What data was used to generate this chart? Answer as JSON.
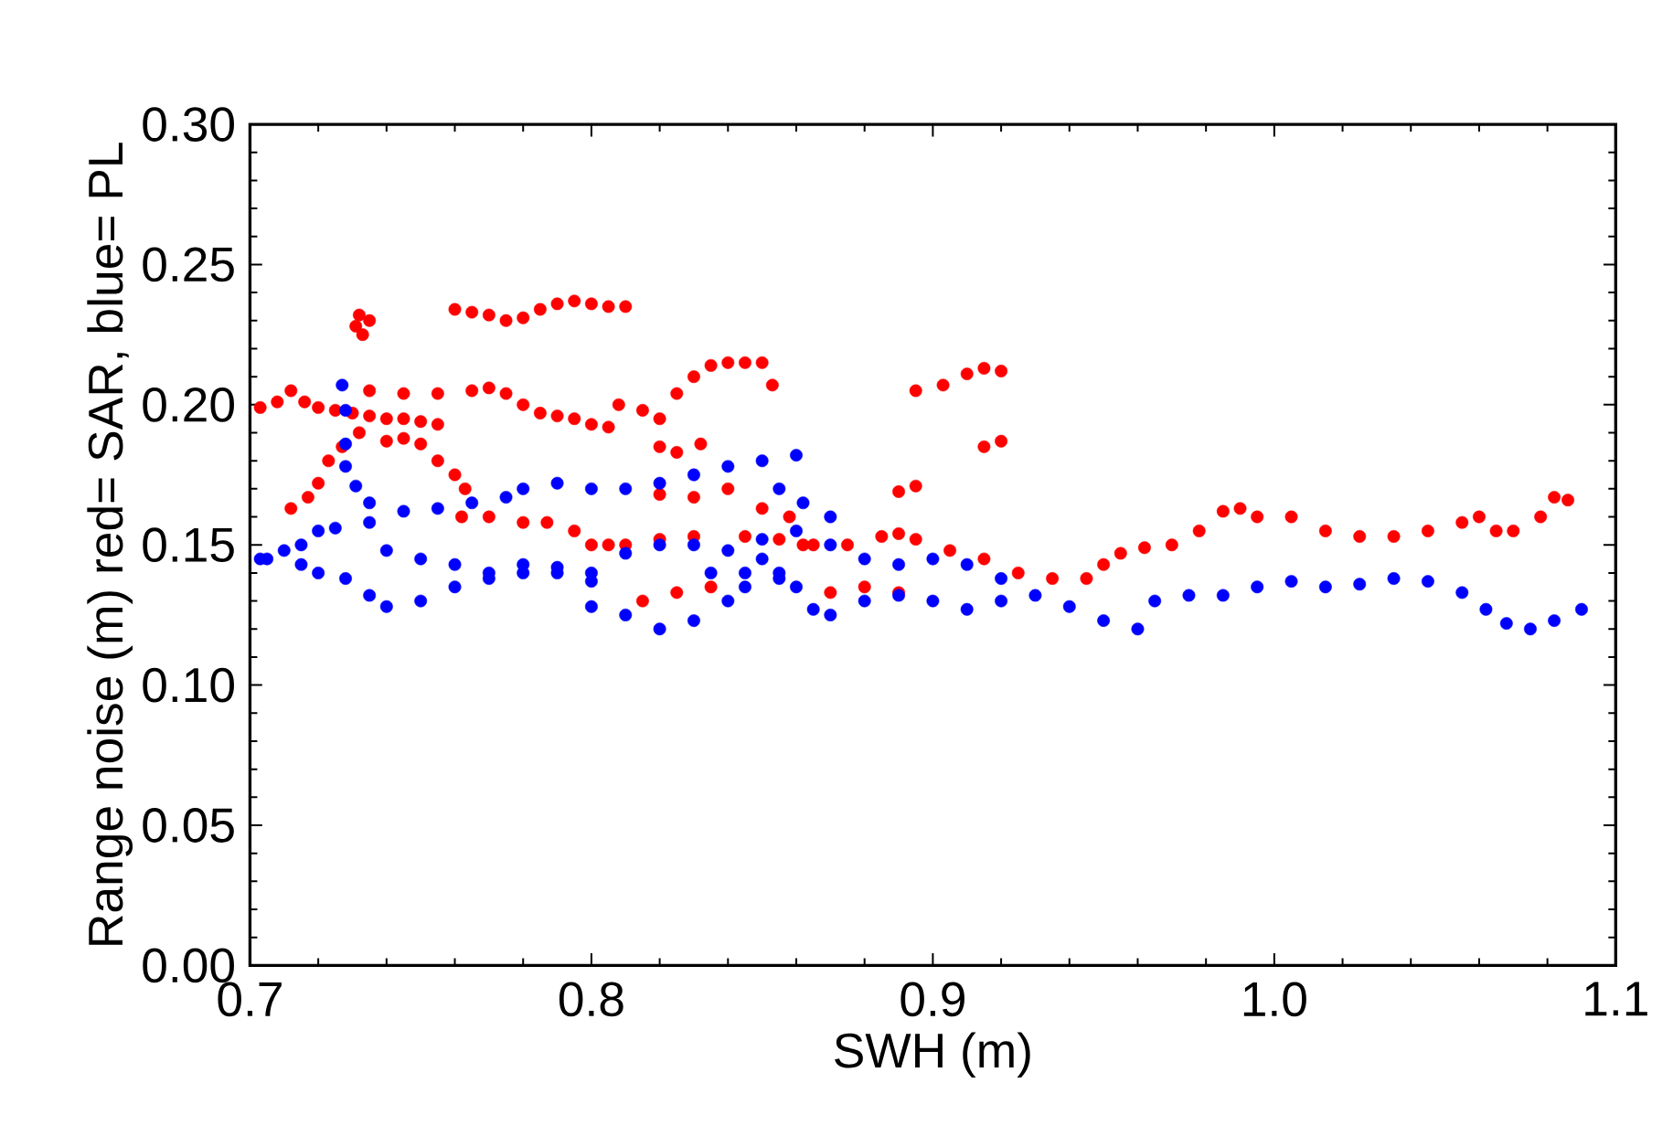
{
  "chart_data": {
    "type": "scatter",
    "xlabel": "SWH (m)",
    "ylabel": "Range noise (m) red= SAR, blue= PL",
    "xlim": [
      0.7,
      1.1
    ],
    "ylim": [
      0,
      0.3
    ],
    "xticks": [
      0.7,
      0.8,
      0.9,
      {
        "value": 1.0,
        "label": "1.0"
      },
      1.1
    ],
    "yticks": [
      {
        "value": 0,
        "label": "0.00"
      },
      {
        "value": 0.05,
        "label": "0.05"
      },
      {
        "value": 0.1,
        "label": "0.10"
      },
      {
        "value": 0.15,
        "label": "0.15"
      },
      {
        "value": 0.2,
        "label": "0.20"
      },
      {
        "value": 0.25,
        "label": "0.25"
      },
      {
        "value": 0.3,
        "label": "0.30"
      }
    ],
    "series": [
      {
        "color": "#ff0000",
        "x": [
          0.731,
          0.733,
          0.735,
          0.732,
          0.76,
          0.765,
          0.77,
          0.775,
          0.78,
          0.785,
          0.79,
          0.795,
          0.8,
          0.805,
          0.81,
          0.703,
          0.708,
          0.712,
          0.716,
          0.72,
          0.725,
          0.73,
          0.735,
          0.74,
          0.745,
          0.75,
          0.755,
          0.735,
          0.745,
          0.755,
          0.765,
          0.77,
          0.775,
          0.78,
          0.785,
          0.79,
          0.795,
          0.8,
          0.805,
          0.808,
          0.815,
          0.82,
          0.825,
          0.83,
          0.835,
          0.84,
          0.845,
          0.85,
          0.853,
          0.712,
          0.717,
          0.72,
          0.723,
          0.727,
          0.732,
          0.74,
          0.745,
          0.75,
          0.755,
          0.76,
          0.763,
          0.762,
          0.77,
          0.78,
          0.787,
          0.795,
          0.8,
          0.805,
          0.82,
          0.825,
          0.832,
          0.82,
          0.83,
          0.84,
          0.85,
          0.858,
          0.862,
          0.81,
          0.82,
          0.83,
          0.845,
          0.855,
          0.865,
          0.875,
          0.885,
          0.89,
          0.895,
          0.905,
          0.915,
          0.925,
          0.935,
          0.945,
          0.95,
          0.955,
          0.962,
          0.97,
          0.978,
          0.985,
          0.99,
          0.995,
          1.005,
          1.015,
          1.025,
          1.035,
          1.045,
          1.055,
          1.06,
          1.065,
          1.07,
          1.078,
          1.082,
          1.086,
          0.815,
          0.825,
          0.835,
          0.87,
          0.88,
          0.89,
          0.895,
          0.903,
          0.91,
          0.915,
          0.92,
          0.915,
          0.92,
          0.89,
          0.895
        ],
        "values": [
          0.228,
          0.225,
          0.23,
          0.232,
          0.234,
          0.233,
          0.232,
          0.23,
          0.231,
          0.234,
          0.236,
          0.237,
          0.236,
          0.235,
          0.235,
          0.199,
          0.201,
          0.205,
          0.201,
          0.199,
          0.198,
          0.197,
          0.196,
          0.195,
          0.195,
          0.194,
          0.193,
          0.205,
          0.204,
          0.204,
          0.205,
          0.206,
          0.204,
          0.2,
          0.197,
          0.196,
          0.195,
          0.193,
          0.192,
          0.2,
          0.198,
          0.195,
          0.204,
          0.21,
          0.214,
          0.215,
          0.215,
          0.215,
          0.207,
          0.163,
          0.167,
          0.172,
          0.18,
          0.185,
          0.19,
          0.187,
          0.188,
          0.186,
          0.18,
          0.175,
          0.17,
          0.16,
          0.16,
          0.158,
          0.158,
          0.155,
          0.15,
          0.15,
          0.185,
          0.183,
          0.186,
          0.168,
          0.167,
          0.17,
          0.163,
          0.16,
          0.15,
          0.15,
          0.152,
          0.153,
          0.153,
          0.152,
          0.15,
          0.15,
          0.153,
          0.154,
          0.152,
          0.148,
          0.145,
          0.14,
          0.138,
          0.138,
          0.143,
          0.147,
          0.149,
          0.15,
          0.155,
          0.162,
          0.163,
          0.16,
          0.16,
          0.155,
          0.153,
          0.153,
          0.155,
          0.158,
          0.16,
          0.155,
          0.155,
          0.16,
          0.167,
          0.166,
          0.13,
          0.133,
          0.135,
          0.133,
          0.135,
          0.133,
          0.205,
          0.207,
          0.211,
          0.213,
          0.212,
          0.185,
          0.187,
          0.169,
          0.171
        ]
      },
      {
        "color": "#0000ff",
        "x": [
          0.703,
          0.71,
          0.715,
          0.72,
          0.725,
          0.735,
          0.745,
          0.755,
          0.765,
          0.775,
          0.78,
          0.79,
          0.8,
          0.81,
          0.82,
          0.83,
          0.84,
          0.85,
          0.86,
          0.727,
          0.728,
          0.728,
          0.728,
          0.731,
          0.735,
          0.705,
          0.715,
          0.72,
          0.728,
          0.735,
          0.74,
          0.75,
          0.76,
          0.77,
          0.78,
          0.79,
          0.8,
          0.8,
          0.81,
          0.82,
          0.83,
          0.84,
          0.845,
          0.85,
          0.855,
          0.86,
          0.865,
          0.87,
          0.88,
          0.89,
          0.9,
          0.91,
          0.92,
          0.93,
          0.94,
          0.95,
          0.96,
          0.965,
          0.975,
          0.985,
          0.995,
          1.005,
          1.015,
          1.025,
          1.035,
          1.045,
          1.055,
          1.062,
          1.068,
          1.075,
          1.082,
          1.09,
          0.74,
          0.75,
          0.76,
          0.77,
          0.78,
          0.79,
          0.8,
          0.81,
          0.82,
          0.83,
          0.84,
          0.85,
          0.86,
          0.87,
          0.88,
          0.89,
          0.9,
          0.91,
          0.92,
          0.835,
          0.845,
          0.855,
          0.862,
          0.855,
          0.87
        ],
        "values": [
          0.145,
          0.148,
          0.15,
          0.155,
          0.156,
          0.158,
          0.162,
          0.163,
          0.165,
          0.167,
          0.17,
          0.172,
          0.17,
          0.17,
          0.172,
          0.175,
          0.178,
          0.18,
          0.182,
          0.207,
          0.198,
          0.186,
          0.178,
          0.171,
          0.165,
          0.145,
          0.143,
          0.14,
          0.138,
          0.132,
          0.128,
          0.13,
          0.135,
          0.138,
          0.14,
          0.14,
          0.137,
          0.128,
          0.125,
          0.12,
          0.123,
          0.13,
          0.14,
          0.145,
          0.14,
          0.135,
          0.127,
          0.125,
          0.13,
          0.132,
          0.13,
          0.127,
          0.13,
          0.132,
          0.128,
          0.123,
          0.12,
          0.13,
          0.132,
          0.132,
          0.135,
          0.137,
          0.135,
          0.136,
          0.138,
          0.137,
          0.133,
          0.127,
          0.122,
          0.12,
          0.123,
          0.127,
          0.148,
          0.145,
          0.143,
          0.14,
          0.143,
          0.142,
          0.14,
          0.147,
          0.15,
          0.15,
          0.148,
          0.152,
          0.155,
          0.15,
          0.145,
          0.143,
          0.145,
          0.143,
          0.138,
          0.14,
          0.135,
          0.138,
          0.165,
          0.17,
          0.16
        ]
      }
    ]
  }
}
